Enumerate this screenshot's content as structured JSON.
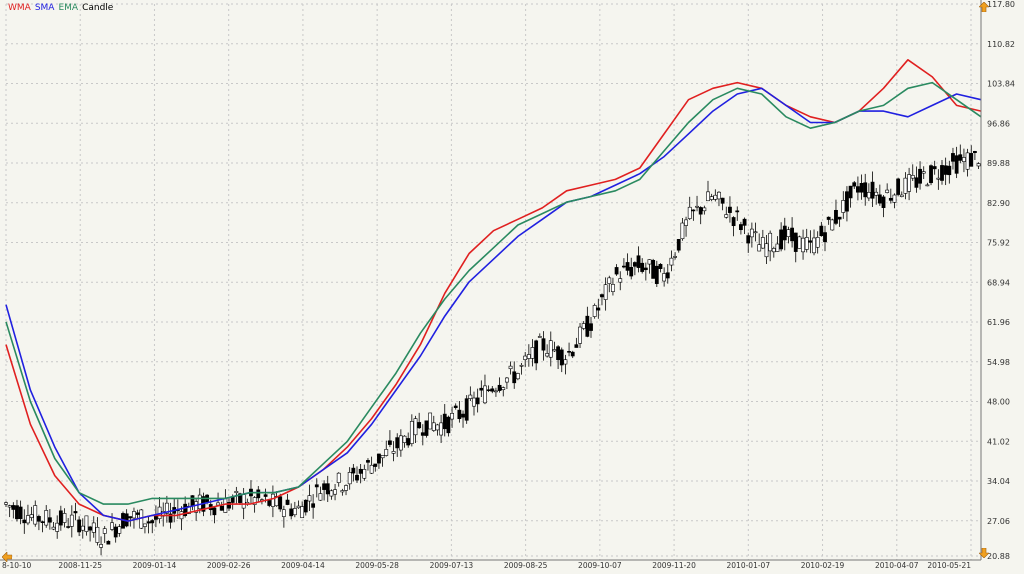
{
  "legend": {
    "wma": "WMA",
    "sma": "SMA",
    "ema": "EMA",
    "candle": "Candle"
  },
  "colors": {
    "wma": "#e02020",
    "sma": "#2020e0",
    "ema": "#2a8a60",
    "candle": "#000000",
    "grid": "#c8c8c8",
    "arrow": "#f0a020"
  },
  "icons": {
    "scroll_left": "left-arrow-icon",
    "scroll_up": "up-arrow-icon",
    "scroll_down": "down-arrow-icon"
  },
  "chart_data": {
    "type": "line",
    "grid": true,
    "legend_position": "top-left",
    "ylim": [
      20.88,
      117.8
    ],
    "yticks": [
      "117.80",
      "110.82",
      "103.84",
      "96.86",
      "89.88",
      "82.90",
      "75.92",
      "68.94",
      "61.96",
      "54.98",
      "48.00",
      "41.02",
      "34.04",
      "27.06",
      "20.88"
    ],
    "xticks": [
      "8-10-10",
      "2008-11-25",
      "2009-01-14",
      "2009-02-26",
      "2009-04-14",
      "2009-05-28",
      "2009-07-13",
      "2009-08-25",
      "2009-10-07",
      "2009-11-20",
      "2010-01-07",
      "2010-02-19",
      "2010-04-07",
      "2010-05-21"
    ],
    "x": [
      0,
      10,
      20,
      30,
      40,
      50,
      60,
      70,
      80,
      90,
      100,
      110,
      120,
      130,
      140,
      150,
      160,
      170,
      180,
      190,
      200,
      210,
      220,
      230,
      240,
      250,
      260,
      270,
      280,
      290,
      300,
      310,
      320,
      330,
      340,
      350,
      360,
      370,
      380,
      390,
      400
    ],
    "close": [
      30,
      28,
      27,
      27,
      24,
      28,
      27,
      29,
      30,
      30,
      31,
      30,
      29,
      33,
      34,
      37,
      40,
      44,
      44,
      47,
      51,
      53,
      58,
      56,
      62,
      70,
      72,
      70,
      80,
      84,
      80,
      75,
      77,
      75,
      80,
      86,
      84,
      86,
      88,
      90,
      91
    ],
    "series": [
      {
        "name": "WMA",
        "values": [
          58,
          44,
          35,
          30,
          28,
          27,
          28,
          28,
          29,
          30,
          30,
          31,
          33,
          36,
          40,
          45,
          51,
          58,
          67,
          74,
          78,
          80,
          82,
          85,
          86,
          87,
          89,
          95,
          101,
          103,
          104,
          103,
          100,
          98,
          97,
          99,
          103,
          108,
          105,
          100,
          99
        ]
      },
      {
        "name": "SMA",
        "values": [
          65,
          50,
          40,
          32,
          28,
          27,
          28,
          29,
          30,
          31,
          32,
          32,
          33,
          36,
          39,
          44,
          50,
          56,
          63,
          69,
          73,
          77,
          80,
          83,
          84,
          86,
          88,
          91,
          95,
          99,
          102,
          103,
          100,
          97,
          97,
          99,
          99,
          98,
          100,
          102,
          101
        ]
      },
      {
        "name": "EMA",
        "values": [
          62,
          48,
          38,
          32,
          30,
          30,
          31,
          31,
          31,
          31,
          32,
          32,
          33,
          37,
          41,
          47,
          53,
          60,
          66,
          71,
          75,
          79,
          81,
          83,
          84,
          85,
          87,
          92,
          97,
          101,
          103,
          102,
          98,
          96,
          97,
          99,
          100,
          103,
          104,
          101,
          98
        ]
      }
    ]
  }
}
